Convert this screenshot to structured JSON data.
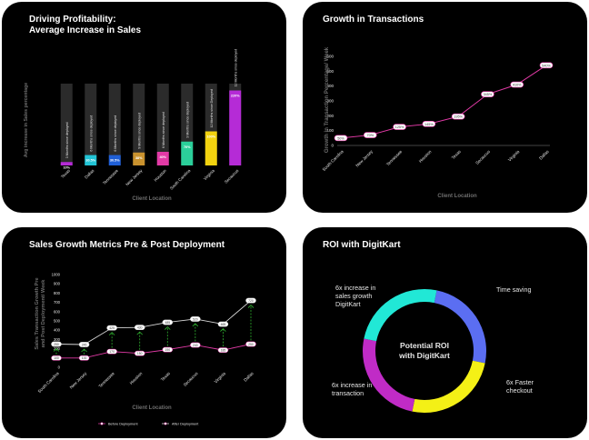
{
  "panels": {
    "p1_title": "Driving Profitability:\nAverage Increase in Sales",
    "p2_title": "Growth in Transactions",
    "p3_title": "Sales Growth Metrics Pre & Post Deployment",
    "p4_title": "ROI with DigitKart"
  },
  "chart_data": [
    {
      "type": "bar",
      "xlabel": "Client Location",
      "ylabel": "Avg increase in Sales percentage",
      "categories": [
        "Texas",
        "Dallas",
        "Tennessee",
        "New Jersey",
        "Houston",
        "South Carolina",
        "Virginia",
        "Secaucus"
      ],
      "values": [
        10,
        30.5,
        30.5,
        38,
        40,
        70,
        100,
        220
      ],
      "value_labels": [
        "10%",
        "30.5%",
        "30.5%",
        "38%",
        "40%",
        "70%",
        "100%",
        "220%"
      ],
      "annotations": [
        "3 Months since deployed",
        "6 Months since deployed",
        "6 Months since deployed",
        "9 Months since deployed",
        "6 Months since deployed",
        "3 Months since deployed",
        "12 Months since Deployed",
        "12 Months since deployed"
      ],
      "colors": [
        "#b52bd6",
        "#22c4d6",
        "#1f5fd6",
        "#c9922e",
        "#e23aa6",
        "#2bcf9a",
        "#f2d20f",
        "#b52bd6"
      ],
      "ylim": [
        0,
        240
      ]
    },
    {
      "type": "line",
      "xlabel": "Client Location",
      "ylabel": "Growth in Transaction Percentage/ Week",
      "categories": [
        "South Carolina",
        "New Jersey",
        "Tennessee",
        "Houston",
        "Texas",
        "Secaucus",
        "Virginia",
        "Dallas"
      ],
      "values": [
        50,
        70,
        125,
        145,
        195,
        345,
        410,
        540
      ],
      "value_labels": [
        "50%",
        "70%",
        "125%",
        "145%",
        "195%",
        "345%",
        "410%",
        "540%"
      ],
      "ylim": [
        0,
        600
      ],
      "yticks": [
        0,
        100,
        200,
        300,
        400,
        500,
        600
      ],
      "color": "#e23aa6"
    },
    {
      "type": "line",
      "xlabel": "Client Location",
      "ylabel": "Sales Transaction Growth Pre and Post Deployment/ Week",
      "categories": [
        "South Carolina",
        "New Jersey",
        "Tennessee",
        "Houston",
        "Texas",
        "Secaucus",
        "Virginia",
        "Dallas"
      ],
      "series": [
        {
          "name": "Before Deployment",
          "values": [
            100,
            100,
            170,
            150,
            190,
            240,
            185,
            250
          ],
          "labels": [
            "100",
            "100",
            "170",
            "150",
            "190",
            "240",
            "185",
            "250"
          ]
        },
        {
          "name": "After Deployment",
          "values": [
            250,
            245,
            425,
            430,
            485,
            520,
            465,
            720
          ],
          "labels": [
            "250",
            "245",
            "425",
            "430",
            "485",
            "520",
            "465",
            "720"
          ]
        }
      ],
      "ylim": [
        0,
        1000
      ],
      "yticks": [
        0,
        100,
        200,
        300,
        400,
        500,
        600,
        700,
        800,
        900,
        1000
      ],
      "legend_position": "bottom",
      "colors": {
        "before": "#e23aa6",
        "after": "#d6d6d6",
        "arrows": "#2fb12f"
      }
    },
    {
      "type": "pie",
      "center_text": "Potential ROI\nwith DigitKart",
      "slices": [
        {
          "label": "Time saving",
          "value": 1,
          "color": "#5b6ef2"
        },
        {
          "label": "6x Faster\ncheckout",
          "value": 1,
          "color": "#f4f016"
        },
        {
          "label": "6x increase in\ntransaction",
          "value": 1,
          "color": "#c02bc6"
        },
        {
          "label": "6x increase in\nsales growth\nDigitKart",
          "value": 1,
          "color": "#21e8d6"
        }
      ]
    }
  ]
}
